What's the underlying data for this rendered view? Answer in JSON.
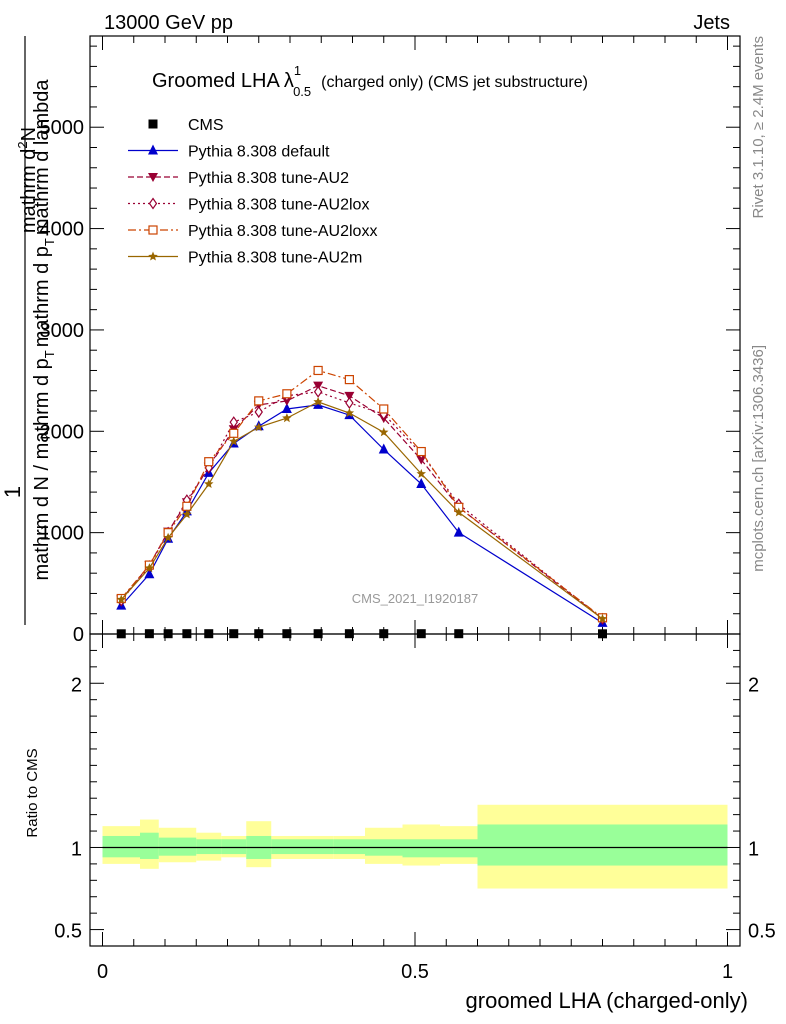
{
  "header": {
    "energy": "13000 GeV pp",
    "category": "Jets"
  },
  "side_labels": {
    "rivet": "Rivet 3.1.10, ≥ 2.4M events",
    "mcplots": "mcplots.cern.ch [arXiv:1306.3436]"
  },
  "watermark": "CMS_2021_I1920187",
  "chart_data": [
    {
      "type": "line",
      "title_main": "Groomed LHA",
      "title_symbol": "λ",
      "title_sup": "1",
      "title_sub": "0.5",
      "title_rest": "(charged only) (CMS jet substructure)",
      "ylabel_top": "1",
      "ylabel_num": "mathrm d^{2}N",
      "ylabel_den": "mathrm d N / mathrm d p_{T} mathrm d p_{T} mathrm d lambda",
      "ylabel_num_text": "mathrm d",
      "ylabel_num_sup": "2",
      "ylabel_num_tail": "N",
      "ylabel_den_text": "mathrm d N / mathrm d p",
      "ylabel_den_sub": "T",
      "ylabel_den_tail": "mathrm d p",
      "ylabel_den_sub2": "T",
      "ylabel_den_end": "mathrm d lambda",
      "xlim": [
        -0.02,
        1.02
      ],
      "ylim": [
        0,
        5900
      ],
      "yticks": [
        0,
        1000,
        2000,
        3000,
        4000,
        5000
      ],
      "ytick_labels": [
        "0",
        "1000",
        "2000",
        "3000",
        "4000",
        "5000"
      ],
      "bin_edges": [
        0.0,
        0.06,
        0.09,
        0.12,
        0.15,
        0.19,
        0.23,
        0.27,
        0.32,
        0.37,
        0.42,
        0.48,
        0.54,
        0.6,
        1.0
      ],
      "x": [
        0.03,
        0.075,
        0.105,
        0.135,
        0.17,
        0.21,
        0.25,
        0.295,
        0.345,
        0.395,
        0.45,
        0.51,
        0.57,
        0.8
      ],
      "series": [
        {
          "name": "CMS",
          "color": "#000000",
          "marker": "square-filled",
          "dash": "none",
          "values": [
            2,
            3,
            3,
            3,
            3,
            3,
            3,
            3,
            3,
            3,
            3,
            3,
            3,
            2
          ]
        },
        {
          "name": "Pythia 8.308 default",
          "color": "#0000cc",
          "marker": "triangle-up-filled",
          "dash": "solid",
          "values": [
            280,
            590,
            940,
            1210,
            1590,
            1880,
            2050,
            2220,
            2260,
            2160,
            1820,
            1480,
            1000,
            110
          ]
        },
        {
          "name": "Pythia 8.308 tune-AU2",
          "color": "#990033",
          "marker": "triangle-down-filled",
          "dash": "6,3",
          "values": [
            340,
            680,
            1010,
            1300,
            1650,
            2020,
            2260,
            2300,
            2450,
            2350,
            2130,
            1720,
            1250,
            150
          ]
        },
        {
          "name": "Pythia 8.308 tune-AU2lox",
          "color": "#990033",
          "marker": "diamond-open",
          "dash": "2,3",
          "values": [
            330,
            670,
            1000,
            1320,
            1640,
            2090,
            2190,
            2350,
            2390,
            2280,
            2170,
            1780,
            1280,
            150
          ]
        },
        {
          "name": "Pythia 8.308 tune-AU2loxx",
          "color": "#cc4400",
          "marker": "square-open",
          "dash": "8,3,2,3",
          "values": [
            350,
            680,
            1000,
            1260,
            1700,
            1980,
            2300,
            2370,
            2600,
            2510,
            2220,
            1800,
            1250,
            160
          ]
        },
        {
          "name": "Pythia 8.308 tune-AU2m",
          "color": "#996600",
          "marker": "star",
          "dash": "solid",
          "values": [
            340,
            650,
            950,
            1180,
            1480,
            1900,
            2040,
            2130,
            2290,
            2180,
            1990,
            1580,
            1200,
            150
          ]
        }
      ]
    },
    {
      "type": "area",
      "ylabel": "Ratio to CMS",
      "xlabel": "groomed LHA (charged-only)",
      "xlim": [
        -0.02,
        1.02
      ],
      "ylim": [
        0.4,
        2.3
      ],
      "yticks": [
        0.5,
        1,
        2
      ],
      "ytick_labels": [
        "0.5",
        "1",
        "2"
      ],
      "xticks": [
        0,
        0.5,
        1
      ],
      "xtick_labels": [
        "0",
        "0.5",
        "1"
      ],
      "reference": 1,
      "bin_edges": [
        0.0,
        0.06,
        0.09,
        0.12,
        0.15,
        0.19,
        0.23,
        0.27,
        0.32,
        0.37,
        0.42,
        0.48,
        0.54,
        0.6,
        1.0
      ],
      "green_band": [
        [
          0.94,
          1.07
        ],
        [
          0.93,
          1.09
        ],
        [
          0.95,
          1.06
        ],
        [
          0.95,
          1.06
        ],
        [
          0.96,
          1.05
        ],
        [
          0.96,
          1.05
        ],
        [
          0.93,
          1.07
        ],
        [
          0.96,
          1.05
        ],
        [
          0.96,
          1.05
        ],
        [
          0.96,
          1.05
        ],
        [
          0.95,
          1.05
        ],
        [
          0.94,
          1.05
        ],
        [
          0.94,
          1.05
        ],
        [
          0.89,
          1.14
        ]
      ],
      "yellow_band": [
        [
          0.9,
          1.13
        ],
        [
          0.87,
          1.17
        ],
        [
          0.91,
          1.12
        ],
        [
          0.91,
          1.12
        ],
        [
          0.92,
          1.09
        ],
        [
          0.94,
          1.07
        ],
        [
          0.88,
          1.16
        ],
        [
          0.93,
          1.07
        ],
        [
          0.93,
          1.07
        ],
        [
          0.93,
          1.07
        ],
        [
          0.9,
          1.12
        ],
        [
          0.89,
          1.14
        ],
        [
          0.9,
          1.13
        ],
        [
          0.75,
          1.26
        ]
      ],
      "colors": {
        "green": "#99ff99",
        "yellow": "#ffff99"
      }
    }
  ]
}
